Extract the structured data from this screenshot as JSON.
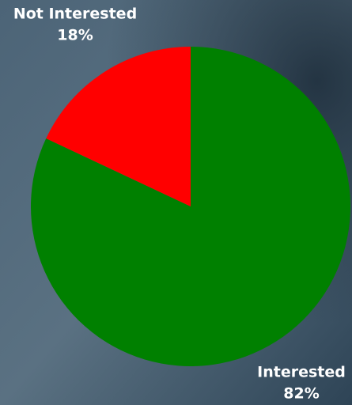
{
  "chart_data": {
    "type": "pie",
    "categories": [
      "Interested",
      "Not Interested"
    ],
    "values": [
      82,
      18
    ],
    "value_labels": [
      "82%",
      "18%"
    ],
    "colors": [
      "#008000",
      "#ff0000"
    ]
  }
}
